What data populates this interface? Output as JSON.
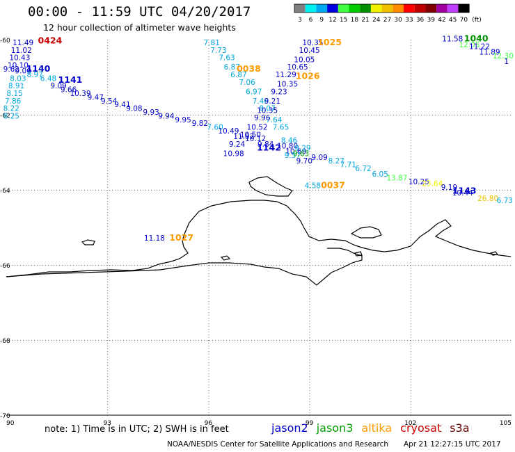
{
  "header": {
    "title": "00:00 - 11:59 UTC 04/20/2017",
    "subtitle": "12 hour collection of altimeter wave heights"
  },
  "legend": {
    "unit": "(ft)",
    "bins": [
      {
        "label": "3",
        "color": "#7f7f7f"
      },
      {
        "label": "6",
        "color": "#00f0f0"
      },
      {
        "label": "9",
        "color": "#00a8f0"
      },
      {
        "label": "12",
        "color": "#0000e0"
      },
      {
        "label": "15",
        "color": "#40ff40"
      },
      {
        "label": "18",
        "color": "#00cc00"
      },
      {
        "label": "21",
        "color": "#009000"
      },
      {
        "label": "24",
        "color": "#f0f000"
      },
      {
        "label": "27",
        "color": "#f0c000"
      },
      {
        "label": "30",
        "color": "#ff8c00"
      },
      {
        "label": "33",
        "color": "#ff0000"
      },
      {
        "label": "36",
        "color": "#c00000"
      },
      {
        "label": "39",
        "color": "#800000"
      },
      {
        "label": "42",
        "color": "#a000a0"
      },
      {
        "label": "45",
        "color": "#c040ff"
      },
      {
        "label": "70",
        "color": "#000000"
      }
    ]
  },
  "map": {
    "lon_range": [
      90,
      105
    ],
    "lat_range": [
      -70,
      -60
    ],
    "lon_ticks": [
      {
        "v": 90,
        "label": "90"
      },
      {
        "v": 93,
        "label": "93"
      },
      {
        "v": 96,
        "label": "96"
      },
      {
        "v": 99,
        "label": "99"
      },
      {
        "v": 102,
        "label": "102"
      },
      {
        "v": 105,
        "label": "105"
      }
    ],
    "lat_ticks": [
      {
        "v": -60,
        "label": "-60"
      },
      {
        "v": -62,
        "label": "-62"
      },
      {
        "v": -64,
        "label": "-64"
      },
      {
        "v": -66,
        "label": "-66"
      },
      {
        "v": -68,
        "label": "-68"
      },
      {
        "v": -70,
        "label": "-70"
      }
    ]
  },
  "colors": {
    "jason2": "#0000cc",
    "jason3": "#00a000",
    "altika": "#ff9900",
    "cryosat": "#cc0000",
    "s3a": "#660000",
    "light": "#00a8e0"
  },
  "track_labels": [
    {
      "text": "0424",
      "lon": 91.3,
      "lat": -60.1,
      "color": "#cc0000"
    },
    {
      "text": "1140",
      "lon": 90.95,
      "lat": -60.85,
      "color": "#0000cc"
    },
    {
      "text": "1141",
      "lon": 91.9,
      "lat": -61.15,
      "color": "#0000cc"
    },
    {
      "text": "0038",
      "lon": 97.2,
      "lat": -60.85,
      "color": "#ff9900"
    },
    {
      "text": "1025",
      "lon": 99.6,
      "lat": -60.15,
      "color": "#ff9900"
    },
    {
      "text": "1026",
      "lon": 98.95,
      "lat": -61.05,
      "color": "#ff9900"
    },
    {
      "text": "1142",
      "lon": 97.8,
      "lat": -62.95,
      "color": "#0000cc"
    },
    {
      "text": "0037",
      "lon": 99.7,
      "lat": -63.95,
      "color": "#ff9900"
    },
    {
      "text": "1143",
      "lon": 103.6,
      "lat": -64.1,
      "color": "#0000cc"
    },
    {
      "text": "1040",
      "lon": 103.95,
      "lat": -60.05,
      "color": "#009000"
    },
    {
      "text": "1027",
      "lon": 95.2,
      "lat": -65.35,
      "color": "#ff9900"
    }
  ],
  "wave_heights": [
    {
      "v": "11.49",
      "lon": 90.5,
      "lat": -60.15,
      "c": "#0000cc"
    },
    {
      "v": "11.02",
      "lon": 90.45,
      "lat": -60.35,
      "c": "#0000cc"
    },
    {
      "v": "10.43",
      "lon": 90.4,
      "lat": -60.55,
      "c": "#0000cc"
    },
    {
      "v": "10.10",
      "lon": 90.35,
      "lat": -60.75,
      "c": "#0000cc"
    },
    {
      "v": "9.62",
      "lon": 90.15,
      "lat": -60.85,
      "c": "#0000cc"
    },
    {
      "v": "9.00",
      "lon": 90.5,
      "lat": -60.9,
      "c": "#0000cc"
    },
    {
      "v": "8.97",
      "lon": 90.85,
      "lat": -61.0,
      "c": "#00a8e0"
    },
    {
      "v": "8.03",
      "lon": 90.35,
      "lat": -61.1,
      "c": "#00a8e0"
    },
    {
      "v": "6.48",
      "lon": 91.25,
      "lat": -61.1,
      "c": "#00a8e0"
    },
    {
      "v": "9.09",
      "lon": 91.55,
      "lat": -61.3,
      "c": "#0000cc"
    },
    {
      "v": "8.91",
      "lon": 90.3,
      "lat": -61.3,
      "c": "#00a8e0"
    },
    {
      "v": "9.66",
      "lon": 91.85,
      "lat": -61.4,
      "c": "#0000cc"
    },
    {
      "v": "8.15",
      "lon": 90.25,
      "lat": -61.5,
      "c": "#00a8e0"
    },
    {
      "v": "10.39",
      "lon": 92.2,
      "lat": -61.5,
      "c": "#0000cc"
    },
    {
      "v": "9.47",
      "lon": 92.65,
      "lat": -61.6,
      "c": "#0000cc"
    },
    {
      "v": "7.86",
      "lon": 90.2,
      "lat": -61.7,
      "c": "#00a8e0"
    },
    {
      "v": "9.54",
      "lon": 93.05,
      "lat": -61.7,
      "c": "#0000cc"
    },
    {
      "v": "9.41",
      "lon": 93.45,
      "lat": -61.8,
      "c": "#0000cc"
    },
    {
      "v": "8.22",
      "lon": 90.15,
      "lat": -61.9,
      "c": "#00a8e0"
    },
    {
      "v": "9.08",
      "lon": 93.8,
      "lat": -61.9,
      "c": "#0000cc"
    },
    {
      "v": "9.93",
      "lon": 94.3,
      "lat": -62.0,
      "c": "#0000cc"
    },
    {
      "v": "8.25",
      "lon": 90.15,
      "lat": -62.1,
      "c": "#00a8e0"
    },
    {
      "v": "9.94",
      "lon": 94.75,
      "lat": -62.1,
      "c": "#0000cc"
    },
    {
      "v": "9.95",
      "lon": 95.25,
      "lat": -62.2,
      "c": "#0000cc"
    },
    {
      "v": "9.82",
      "lon": 95.75,
      "lat": -62.3,
      "c": "#0000cc"
    },
    {
      "v": "7.60",
      "lon": 96.2,
      "lat": -62.4,
      "c": "#00a8e0"
    },
    {
      "v": "10.49",
      "lon": 96.6,
      "lat": -62.5,
      "c": "#0000cc"
    },
    {
      "v": "10.50",
      "lon": 97.25,
      "lat": -62.6,
      "c": "#0000cc"
    },
    {
      "v": "11.02",
      "lon": 97.05,
      "lat": -62.65,
      "c": "#0000cc"
    },
    {
      "v": "10.12",
      "lon": 97.4,
      "lat": -62.7,
      "c": "#0000cc"
    },
    {
      "v": "9.24",
      "lon": 96.85,
      "lat": -62.85,
      "c": "#0000cc"
    },
    {
      "v": "9.84",
      "lon": 97.7,
      "lat": -62.85,
      "c": "#0000cc"
    },
    {
      "v": "10.80",
      "lon": 98.35,
      "lat": -62.9,
      "c": "#0000cc"
    },
    {
      "v": "10.98",
      "lon": 96.75,
      "lat": -63.1,
      "c": "#0000cc"
    },
    {
      "v": "10.69",
      "lon": 98.6,
      "lat": -63.05,
      "c": "#0000cc"
    },
    {
      "v": "9.29",
      "lon": 98.8,
      "lat": -62.95,
      "c": "#00a8e0"
    },
    {
      "v": "9.57",
      "lon": 98.5,
      "lat": -63.15,
      "c": "#00a8e0"
    },
    {
      "v": "9.63",
      "lon": 98.75,
      "lat": -63.1,
      "c": "#00a000"
    },
    {
      "v": "9.09",
      "lon": 99.3,
      "lat": -63.2,
      "c": "#0000cc"
    },
    {
      "v": "9.70",
      "lon": 98.85,
      "lat": -63.3,
      "c": "#0000cc"
    },
    {
      "v": "8.27",
      "lon": 99.8,
      "lat": -63.3,
      "c": "#00a8e0"
    },
    {
      "v": "7.71",
      "lon": 100.15,
      "lat": -63.4,
      "c": "#00a8e0"
    },
    {
      "v": "6.72",
      "lon": 100.6,
      "lat": -63.5,
      "c": "#00a8e0"
    },
    {
      "v": "6.05",
      "lon": 101.1,
      "lat": -63.65,
      "c": "#00a8e0"
    },
    {
      "v": "13.87",
      "lon": 101.6,
      "lat": -63.75,
      "c": "#40ff40"
    },
    {
      "v": "10.25",
      "lon": 102.25,
      "lat": -63.85,
      "c": "#0000cc"
    },
    {
      "v": "23.64",
      "lon": 102.65,
      "lat": -63.9,
      "c": "#f0f000"
    },
    {
      "v": "9.19",
      "lon": 103.15,
      "lat": -64.0,
      "c": "#0000cc"
    },
    {
      "v": "10.44",
      "lon": 103.55,
      "lat": -64.15,
      "c": "#0000cc"
    },
    {
      "v": "26.80",
      "lon": 104.3,
      "lat": -64.3,
      "c": "#f0c000"
    },
    {
      "v": "6.73",
      "lon": 104.8,
      "lat": -64.35,
      "c": "#00a8e0"
    },
    {
      "v": "4.58",
      "lon": 99.1,
      "lat": -63.95,
      "c": "#00a8e0"
    },
    {
      "v": "7.81",
      "lon": 96.1,
      "lat": -60.15,
      "c": "#00a8e0"
    },
    {
      "v": "7.73",
      "lon": 96.3,
      "lat": -60.35,
      "c": "#00a8e0"
    },
    {
      "v": "7.63",
      "lon": 96.55,
      "lat": -60.55,
      "c": "#00a8e0"
    },
    {
      "v": "6.87",
      "lon": 96.7,
      "lat": -60.8,
      "c": "#00a8e0"
    },
    {
      "v": "6.87",
      "lon": 96.9,
      "lat": -61.0,
      "c": "#00a8e0"
    },
    {
      "v": "7.06",
      "lon": 97.15,
      "lat": -61.2,
      "c": "#00a8e0"
    },
    {
      "v": "6.97",
      "lon": 97.35,
      "lat": -61.45,
      "c": "#00a8e0"
    },
    {
      "v": "7.46",
      "lon": 97.55,
      "lat": -61.7,
      "c": "#00a8e0"
    },
    {
      "v": "8.07",
      "lon": 97.75,
      "lat": -61.9,
      "c": "#00a8e0"
    },
    {
      "v": "7.64",
      "lon": 97.95,
      "lat": -62.2,
      "c": "#00a8e0"
    },
    {
      "v": "7.65",
      "lon": 98.15,
      "lat": -62.4,
      "c": "#00a8e0"
    },
    {
      "v": "8.46",
      "lon": 98.4,
      "lat": -62.75,
      "c": "#00a8e0"
    },
    {
      "v": "10.35",
      "lon": 99.1,
      "lat": -60.15,
      "c": "#0000cc"
    },
    {
      "v": "10.45",
      "lon": 99.0,
      "lat": -60.35,
      "c": "#0000cc"
    },
    {
      "v": "10.05",
      "lon": 98.85,
      "lat": -60.6,
      "c": "#0000cc"
    },
    {
      "v": "10.65",
      "lon": 98.65,
      "lat": -60.8,
      "c": "#0000cc"
    },
    {
      "v": "11.29",
      "lon": 98.3,
      "lat": -61.0,
      "c": "#0000cc"
    },
    {
      "v": "10.35",
      "lon": 98.35,
      "lat": -61.25,
      "c": "#0000cc"
    },
    {
      "v": "9.23",
      "lon": 98.1,
      "lat": -61.45,
      "c": "#0000cc"
    },
    {
      "v": "9.21",
      "lon": 97.9,
      "lat": -61.7,
      "c": "#0000cc"
    },
    {
      "v": "10.35",
      "lon": 97.75,
      "lat": -61.95,
      "c": "#0000cc"
    },
    {
      "v": "9.96",
      "lon": 97.6,
      "lat": -62.15,
      "c": "#0000cc"
    },
    {
      "v": "10.52",
      "lon": 97.45,
      "lat": -62.4,
      "c": "#0000cc"
    },
    {
      "v": "11.58",
      "lon": 103.25,
      "lat": -60.05,
      "c": "#0000cc"
    },
    {
      "v": "12.05",
      "lon": 103.75,
      "lat": -60.2,
      "c": "#40ff40"
    },
    {
      "v": "11.22",
      "lon": 104.05,
      "lat": -60.25,
      "c": "#0000cc"
    },
    {
      "v": "11.89",
      "lon": 104.35,
      "lat": -60.4,
      "c": "#0000cc"
    },
    {
      "v": "12.30",
      "lon": 104.75,
      "lat": -60.5,
      "c": "#40ff40"
    },
    {
      "v": "1",
      "lon": 104.85,
      "lat": -60.65,
      "c": "#0000cc"
    },
    {
      "v": "11.18",
      "lon": 94.4,
      "lat": -65.35,
      "c": "#0000cc"
    }
  ],
  "footer": {
    "note": "note:  1) Time is in UTC;  2) SWH is in feet",
    "missions": [
      {
        "name": "jason2",
        "color": "#0000cc"
      },
      {
        "name": "jason3",
        "color": "#00a000"
      },
      {
        "name": "altika",
        "color": "#ff9900"
      },
      {
        "name": "cryosat",
        "color": "#cc0000"
      },
      {
        "name": "s3a",
        "color": "#660000"
      }
    ],
    "credit": "NOAA/NESDIS Center for Satellite Applications and Research",
    "timestamp": "Apr 21 12:27:15 UTC 2017"
  }
}
